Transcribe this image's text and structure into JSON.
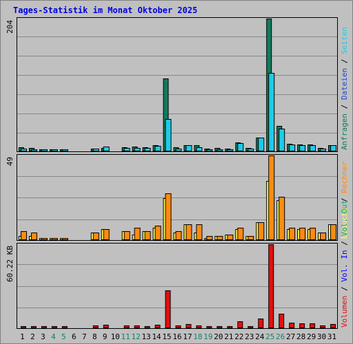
{
  "title": "Tages-Statistik im Monat Oktober 2025",
  "colors": {
    "background": "#c0c0c0",
    "title": "#0000e0",
    "anfragen": "#127a5c",
    "dateien": "#1f47d6",
    "seiten": "#1ecbe8",
    "besuche": "#ffff4d",
    "rechner": "#ff8a14",
    "vol_in": "#0000ff",
    "vol_out": "#12a872",
    "volumen": "#e01010",
    "weekend": "#14806a",
    "weekday": "#000000"
  },
  "chart_data": [
    {
      "type": "bar",
      "x": [
        1,
        2,
        3,
        4,
        5,
        6,
        7,
        8,
        9,
        10,
        11,
        12,
        13,
        14,
        15,
        16,
        17,
        18,
        19,
        20,
        21,
        22,
        23,
        24,
        25,
        26,
        27,
        28,
        29,
        30,
        31
      ],
      "weekend_days": [
        4,
        5,
        11,
        12,
        18,
        19,
        25,
        26
      ],
      "ylabel": "204",
      "ymax": 204,
      "series": [
        {
          "name": "Anfragen",
          "values": [
            5,
            4,
            2,
            2,
            1,
            0,
            0,
            3,
            4,
            0,
            5,
            6,
            5,
            9,
            112,
            5,
            8,
            9,
            3,
            4,
            3,
            13,
            4,
            20,
            204,
            38,
            11,
            10,
            10,
            4,
            8
          ]
        },
        {
          "name": "Dateien",
          "values": [
            0,
            0,
            0,
            0,
            0,
            0,
            0,
            0,
            0,
            0,
            0,
            0,
            0,
            0,
            0,
            0,
            0,
            0,
            0,
            0,
            0,
            0,
            0,
            0,
            0,
            0,
            0,
            0,
            0,
            0,
            0
          ]
        },
        {
          "name": "Seiten",
          "values": [
            3,
            2,
            1,
            2,
            1,
            0,
            0,
            3,
            6,
            0,
            4,
            4,
            4,
            7,
            49,
            3,
            8,
            5,
            2,
            2,
            2,
            12,
            3,
            20,
            120,
            34,
            10,
            8,
            9,
            3,
            8
          ]
        }
      ],
      "legend": [
        {
          "label": "Anfragen",
          "color": "anfragen"
        },
        {
          "label": "Dateien",
          "color": "dateien"
        },
        {
          "label": "Seiten",
          "color": "seiten"
        }
      ]
    },
    {
      "type": "bar",
      "x": [
        1,
        2,
        3,
        4,
        5,
        6,
        7,
        8,
        9,
        10,
        11,
        12,
        13,
        14,
        15,
        16,
        17,
        18,
        19,
        20,
        21,
        22,
        23,
        24,
        25,
        26,
        27,
        28,
        29,
        30,
        31
      ],
      "ylabel": "49",
      "ymax": 49,
      "series": [
        {
          "name": "Besuche",
          "values": [
            2,
            2,
            1,
            1,
            1,
            0,
            0,
            4,
            6,
            0,
            5,
            3,
            5,
            7,
            24,
            4,
            9,
            4,
            1,
            2,
            3,
            6,
            2,
            10,
            34,
            23,
            6,
            6,
            6,
            4,
            9
          ]
        },
        {
          "name": "Rechner",
          "values": [
            5,
            4,
            1,
            1,
            1,
            0,
            0,
            4,
            6,
            0,
            5,
            7,
            5,
            8,
            27,
            5,
            9,
            9,
            2,
            2,
            3,
            7,
            2,
            10,
            49,
            25,
            7,
            7,
            7,
            4,
            9
          ]
        }
      ],
      "legend": [
        {
          "label": "Besuche",
          "color": "besuche"
        },
        {
          "label": "Rechner",
          "color": "rechner"
        }
      ]
    },
    {
      "type": "bar",
      "x": [
        1,
        2,
        3,
        4,
        5,
        6,
        7,
        8,
        9,
        10,
        11,
        12,
        13,
        14,
        15,
        16,
        17,
        18,
        19,
        20,
        21,
        22,
        23,
        24,
        25,
        26,
        27,
        28,
        29,
        30,
        31
      ],
      "ylabel": "60.22 KB",
      "ymax": 60.22,
      "series": [
        {
          "name": "Volumen",
          "values": [
            0.8,
            0.8,
            0.7,
            1.2,
            0.9,
            0,
            0,
            1.4,
            2.2,
            0,
            1.5,
            1.3,
            1.2,
            2.0,
            27.0,
            1.3,
            2.5,
            1.7,
            1.0,
            0.9,
            1.1,
            4.3,
            1.2,
            6.3,
            60.22,
            10.0,
            3.5,
            3.2,
            3.2,
            1.6,
            2.6
          ]
        }
      ],
      "legend": [
        {
          "label": "Volumen",
          "color": "volumen"
        },
        {
          "label": "Vol. In",
          "color": "vol_in"
        },
        {
          "label": "Vol. Out",
          "color": "vol_out"
        }
      ]
    }
  ]
}
